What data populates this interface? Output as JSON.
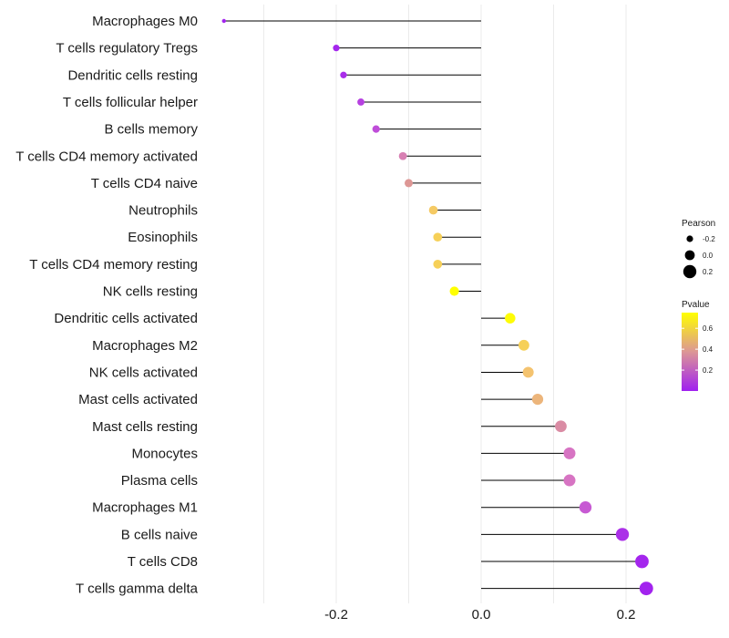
{
  "chart_data": {
    "type": "lollipop",
    "title": "",
    "xlabel": "",
    "ylabel": "",
    "xlim": [
      -0.4,
      0.25
    ],
    "x_ticks": [
      -0.2,
      0.0,
      0.2
    ],
    "x_tick_labels": [
      "-0.2",
      "0.0",
      "0.2"
    ],
    "grid": true,
    "categories": [
      "Macrophages M0",
      "T cells regulatory  Tregs",
      "Dendritic cells resting",
      "T cells follicular helper",
      "B cells memory",
      "T cells CD4 memory activated",
      "T cells CD4 naive",
      "Neutrophils",
      "Eosinophils",
      "T cells CD4 memory resting",
      "NK cells resting",
      "Dendritic cells activated",
      "Macrophages M2",
      "NK cells activated",
      "Mast cells activated",
      "Mast cells resting",
      "Monocytes",
      "Plasma cells",
      "Macrophages M1",
      "B cells naive",
      "T cells CD8",
      "T cells gamma delta"
    ],
    "pearson": [
      -0.355,
      -0.2,
      -0.19,
      -0.166,
      -0.145,
      -0.108,
      -0.1,
      -0.066,
      -0.06,
      -0.06,
      -0.037,
      0.04,
      0.059,
      0.065,
      0.078,
      0.11,
      0.122,
      0.122,
      0.144,
      0.195,
      0.222,
      0.228
    ],
    "pvalue": [
      0.01,
      0.02,
      0.04,
      0.1,
      0.14,
      0.3,
      0.38,
      0.58,
      0.6,
      0.6,
      0.75,
      0.74,
      0.6,
      0.56,
      0.5,
      0.34,
      0.26,
      0.26,
      0.18,
      0.05,
      0.02,
      0.01
    ],
    "legend": {
      "size_title": "Pearson",
      "size_labels": [
        "-0.2",
        "0.0",
        "0.2"
      ],
      "size_values": [
        -0.2,
        0.0,
        0.2
      ],
      "color_title": "Pvalue",
      "color_labels": [
        "0.6",
        "0.4",
        "0.2"
      ],
      "color_values": [
        0.6,
        0.4,
        0.2
      ],
      "color_range": [
        0.0,
        0.75
      ],
      "color_low": "#A020F0",
      "color_high": "#FFFF00",
      "placement": "right"
    }
  }
}
